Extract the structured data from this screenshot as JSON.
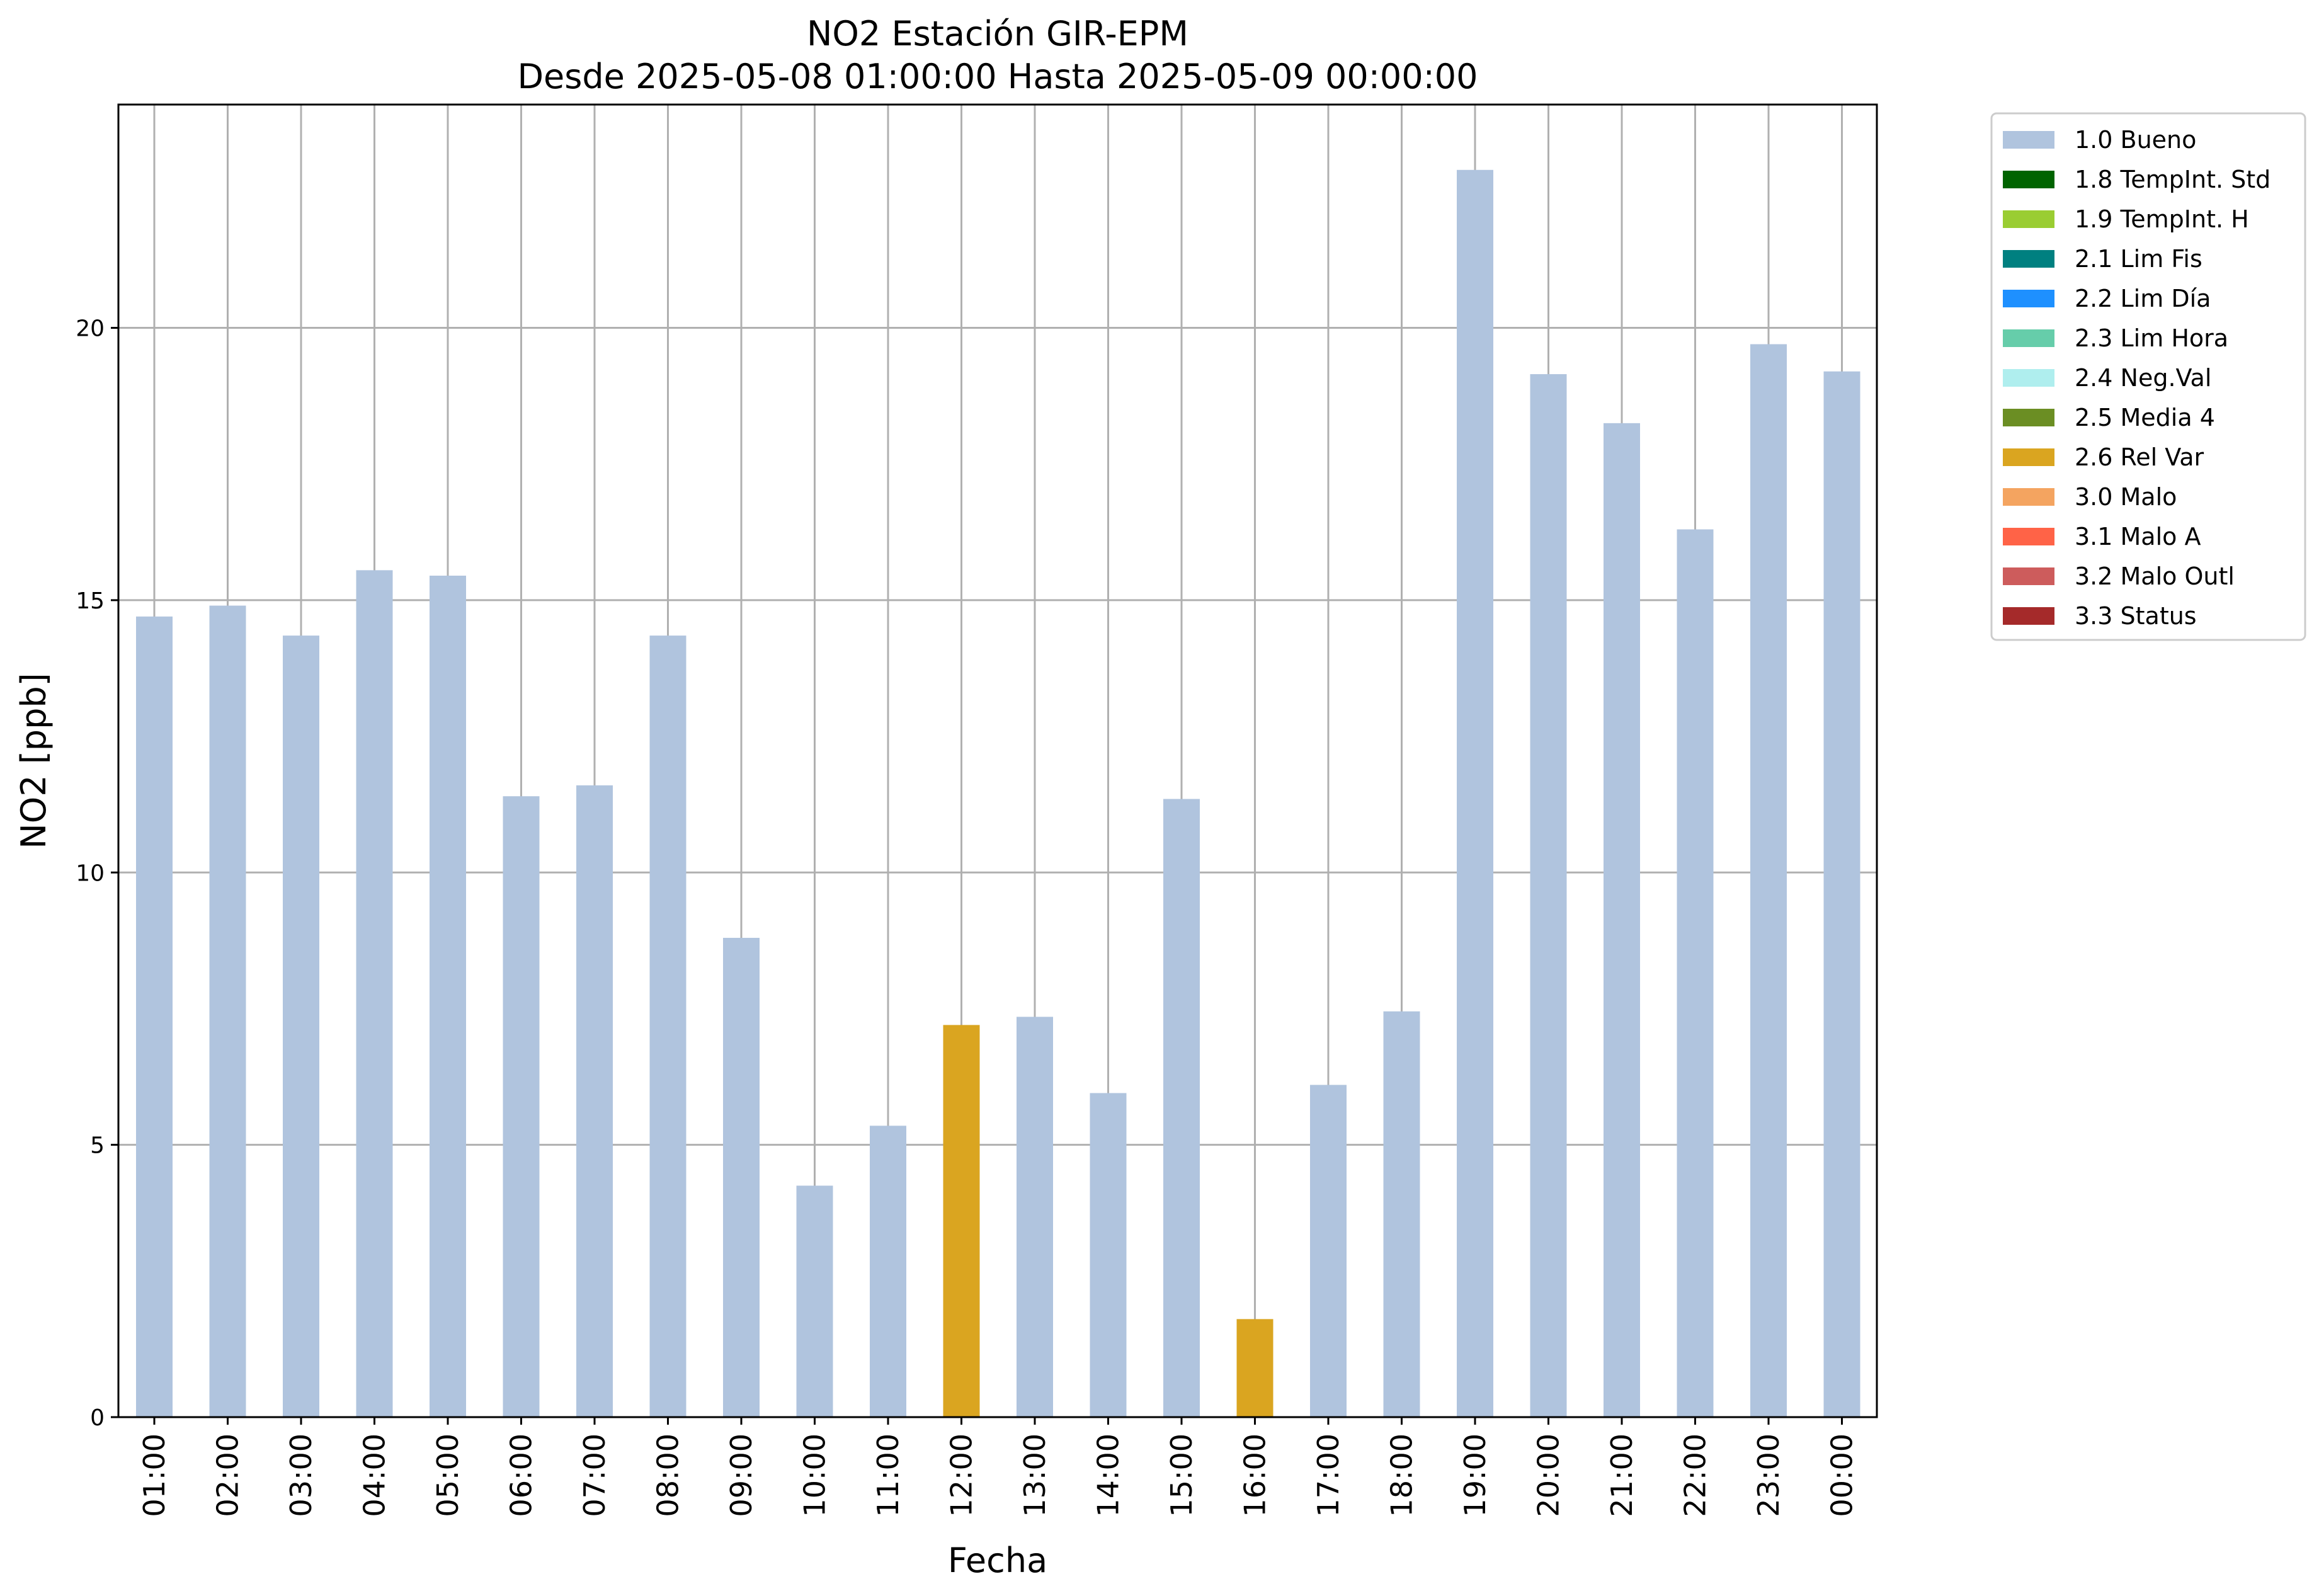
{
  "chart_data": {
    "type": "bar",
    "title": "NO2 Estación GIR-EPM",
    "subtitle": "Desde 2025-05-08 01:00:00 Hasta 2025-05-09 00:00:00",
    "xlabel": "Fecha",
    "ylabel": "NO2 [ppb]",
    "ylim": [
      0,
      24.1
    ],
    "yticks": [
      0,
      5,
      10,
      15,
      20
    ],
    "grid": true,
    "legend_position": "outside-top-right",
    "categories": [
      "01:00",
      "02:00",
      "03:00",
      "04:00",
      "05:00",
      "06:00",
      "07:00",
      "08:00",
      "09:00",
      "10:00",
      "11:00",
      "12:00",
      "13:00",
      "14:00",
      "15:00",
      "16:00",
      "17:00",
      "18:00",
      "19:00",
      "20:00",
      "21:00",
      "22:00",
      "23:00",
      "00:00"
    ],
    "values": [
      14.7,
      14.9,
      14.35,
      15.55,
      15.45,
      11.4,
      11.6,
      14.35,
      8.8,
      4.25,
      5.35,
      7.2,
      7.35,
      5.95,
      11.35,
      1.8,
      6.1,
      7.45,
      22.9,
      19.15,
      18.25,
      16.3,
      19.7,
      19.2
    ],
    "flags": [
      "1.0 Bueno",
      "1.0 Bueno",
      "1.0 Bueno",
      "1.0 Bueno",
      "1.0 Bueno",
      "1.0 Bueno",
      "1.0 Bueno",
      "1.0 Bueno",
      "1.0 Bueno",
      "1.0 Bueno",
      "1.0 Bueno",
      "2.6 Rel Var",
      "1.0 Bueno",
      "1.0 Bueno",
      "1.0 Bueno",
      "2.6 Rel Var",
      "1.0 Bueno",
      "1.0 Bueno",
      "1.0 Bueno",
      "1.0 Bueno",
      "1.0 Bueno",
      "1.0 Bueno",
      "1.0 Bueno",
      "1.0 Bueno"
    ],
    "legend": [
      {
        "label": "1.0 Bueno",
        "color": "#b0c4de"
      },
      {
        "label": "1.8 TempInt. Std",
        "color": "#006400"
      },
      {
        "label": "1.9 TempInt. H",
        "color": "#9acd32"
      },
      {
        "label": "2.1 Lim Fis",
        "color": "#008080"
      },
      {
        "label": "2.2 Lim Día",
        "color": "#1e90ff"
      },
      {
        "label": "2.3 Lim Hora",
        "color": "#66cdaa"
      },
      {
        "label": "2.4 Neg.Val",
        "color": "#afeeee"
      },
      {
        "label": "2.5 Media 4",
        "color": "#6b8e23"
      },
      {
        "label": "2.6 Rel Var",
        "color": "#daa520"
      },
      {
        "label": "3.0 Malo",
        "color": "#f4a460"
      },
      {
        "label": "3.1 Malo A",
        "color": "#ff6347"
      },
      {
        "label": "3.2 Malo Outl",
        "color": "#cd5c5c"
      },
      {
        "label": "3.3 Status",
        "color": "#a52a2a"
      }
    ]
  }
}
